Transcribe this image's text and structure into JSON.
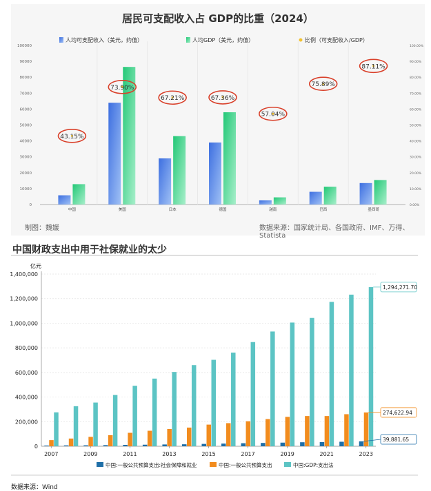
{
  "chart_data": [
    {
      "type": "bar",
      "title": "居民可支配收入占 GDP的比重（2024）",
      "categories": [
        "中国",
        "美国",
        "日本",
        "德国",
        "越南",
        "巴西",
        "墨西哥"
      ],
      "series": [
        {
          "name": "人均可支配收入（美元，约值）",
          "values": [
            5800,
            64000,
            29000,
            39000,
            2600,
            8000,
            13500
          ]
        },
        {
          "name": "人均GDP（美元，约值）",
          "values": [
            12800,
            86500,
            43000,
            58000,
            4500,
            11200,
            15400
          ]
        },
        {
          "name": "比例（可支配收入/GDP）",
          "values": [
            43.15,
            73.9,
            67.21,
            67.36,
            57.04,
            75.89,
            87.11
          ],
          "labels": [
            "43.15%",
            "73.90%",
            "67.21%",
            "67.36%",
            "57.04%",
            "75.89%",
            "87.11%"
          ]
        }
      ],
      "ylim": [
        0,
        100000
      ],
      "yticks": [
        "0",
        "10000",
        "20000",
        "30000",
        "40000",
        "50000",
        "60000",
        "70000",
        "80000",
        "90000",
        "100000"
      ],
      "y2lim": [
        0,
        100
      ],
      "y2ticks": [
        "0.00%",
        "10.00%",
        "20.00%",
        "30.00%",
        "40.00%",
        "50.00%",
        "60.00%",
        "70.00%",
        "80.00%",
        "90.00%",
        "100.00%"
      ],
      "grid": false,
      "legend": "top",
      "footnote_left": "制图：魏媛",
      "footnote_right": "数据来源：国家统计局、各国政府、IMF、万得、Statista",
      "colors": {
        "income": "#4a7ee0",
        "gdp": "#2fcf85",
        "ratio": "#f2c12e",
        "circle": "#d9402a"
      }
    },
    {
      "type": "bar",
      "title": "中国财政支出中用于社保就业的太少",
      "ylabel": "亿元",
      "x": [
        2007,
        2008,
        2009,
        2010,
        2011,
        2012,
        2013,
        2014,
        2015,
        2016,
        2017,
        2018,
        2019,
        2020,
        2021,
        2022,
        2023
      ],
      "xticks": [
        "2007",
        "2009",
        "2011",
        "2013",
        "2015",
        "2017",
        "2019",
        "2021",
        "2023"
      ],
      "series": [
        {
          "name": "中国:一般公共预算支出:社会保障和就业",
          "values": [
            5447,
            6804,
            7607,
            9131,
            11109,
            12586,
            14491,
            15969,
            19019,
            21591,
            24612,
            27012,
            29379,
            32569,
            33788,
            36609,
            39881.65
          ]
        },
        {
          "name": "中国:一般公共预算支出",
          "values": [
            49781,
            62593,
            76300,
            89874,
            109248,
            125953,
            140212,
            151786,
            175878,
            187755,
            203085,
            220904,
            238858,
            245679,
            245673,
            260552,
            274622.94
          ]
        },
        {
          "name": "中国:GDP:支出法",
          "values": [
            275624,
            325620,
            355253,
            416657,
            491880,
            550047,
            603978,
            659613,
            702823,
            761536,
            847140,
            932906,
            1005700,
            1043250,
            1173960,
            1232800,
            1294271.7
          ]
        }
      ],
      "end_labels": [
        "39,881.65",
        "274,622.94",
        "1,294,271.70"
      ],
      "ylim": [
        0,
        1400000
      ],
      "yticks": [
        "0",
        "200,000",
        "400,000",
        "600,000",
        "800,000",
        "1,000,000",
        "1,200,000",
        "1,400,000"
      ],
      "grid": true,
      "legend": "bottom",
      "footnote": "数据来源：Wind",
      "colors": {
        "social": "#1f6fa8",
        "budget": "#f28c1e",
        "gdp": "#5cc4c4"
      }
    }
  ]
}
